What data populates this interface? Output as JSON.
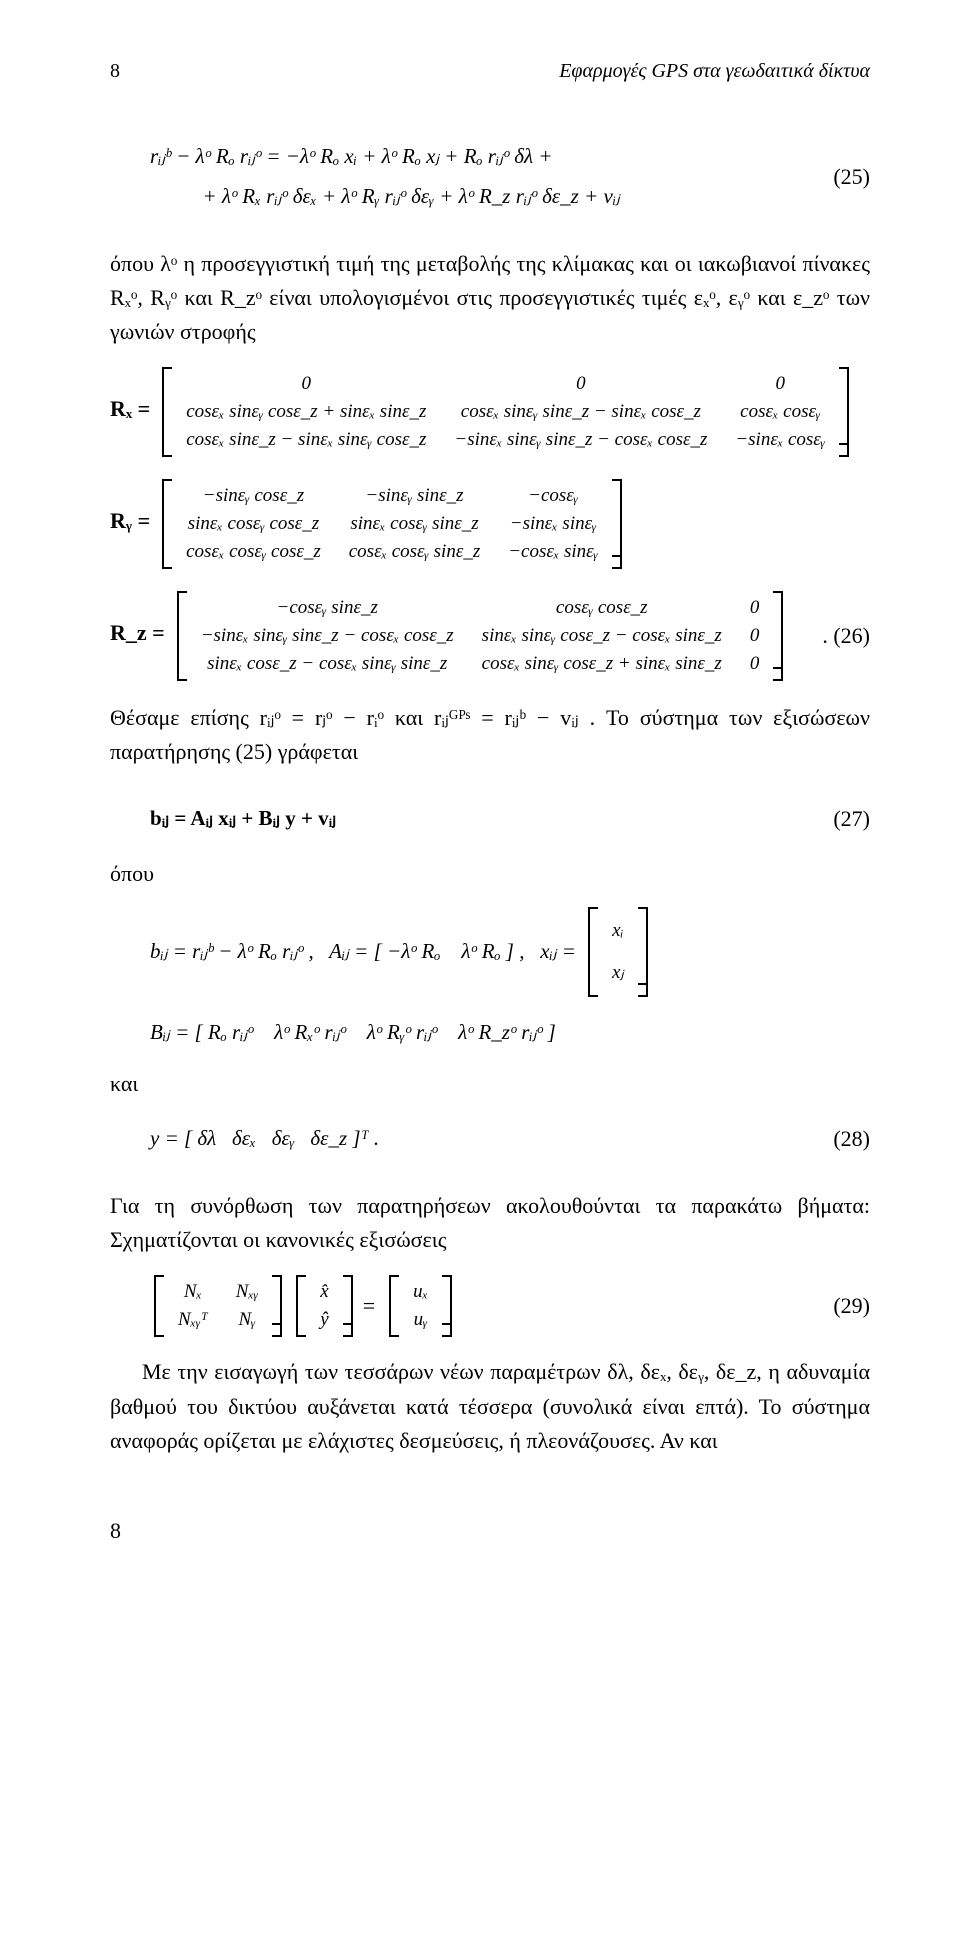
{
  "header": {
    "page_left": "8",
    "title_right": "Εφαρμογές GPS στα γεωδαιτικά δίκτυα"
  },
  "eq25": {
    "line1": "rᵢⱼᵇ − λᵒ Rₒ rᵢⱼᵒ = −λᵒ Rₒ xᵢ + λᵒ Rₒ xⱼ + Rₒ rᵢⱼᵒ δλ +",
    "line2": "          + λᵒ Rₓ rᵢⱼᵒ δεₓ + λᵒ Rᵧ rᵢⱼᵒ δεᵧ + λᵒ R_z rᵢⱼᵒ δε_z + vᵢⱼ",
    "num": "(25)"
  },
  "para1": "όπου λᵒ η προσεγγιστική τιμή της μεταβολής της κλίμακας και οι ιακωβιανοί πίνακες Rₓᵒ, Rᵧᵒ και R_zᵒ είναι υπολογισμένοι στις προσεγγιστικές τιμές εₓᵒ, εᵧᵒ και ε_zᵒ των γωνιών στροφής",
  "Rx": {
    "lead": "Rₓ =",
    "rows": [
      [
        "0",
        "0",
        "0"
      ],
      [
        "cosεₓ sinεᵧ cosε_z + sinεₓ sinε_z",
        "cosεₓ sinεᵧ sinε_z − sinεₓ cosε_z",
        "cosεₓ cosεᵧ"
      ],
      [
        "cosεₓ sinε_z − sinεₓ sinεᵧ cosε_z",
        "−sinεₓ sinεᵧ sinε_z − cosεₓ cosε_z",
        "−sinεₓ cosεᵧ"
      ]
    ]
  },
  "Ry": {
    "lead": "Rᵧ =",
    "rows": [
      [
        "−sinεᵧ cosε_z",
        "−sinεᵧ sinε_z",
        "−cosεᵧ"
      ],
      [
        "sinεₓ cosεᵧ cosε_z",
        "sinεₓ cosεᵧ sinε_z",
        "−sinεₓ sinεᵧ"
      ],
      [
        "cosεₓ cosεᵧ cosε_z",
        "cosεₓ cosεᵧ sinε_z",
        "−cosεₓ sinεᵧ"
      ]
    ]
  },
  "Rz": {
    "lead": "R_z =",
    "rows": [
      [
        "−cosεᵧ sinε_z",
        "cosεᵧ cosε_z",
        "0"
      ],
      [
        "−sinεₓ sinεᵧ sinε_z − cosεₓ cosε_z",
        "sinεₓ sinεᵧ cosε_z − cosεₓ sinε_z",
        "0"
      ],
      [
        "sinεₓ cosε_z − cosεₓ sinεᵧ sinε_z",
        "cosεₓ sinεᵧ cosε_z + sinεₓ sinε_z",
        "0"
      ]
    ],
    "num": ".   (26)"
  },
  "para2": "Θέσαμε επίσης rᵢⱼᵒ = rⱼᵒ − rᵢᵒ και rᵢⱼᴳᴾˢ = rᵢⱼᵇ − vᵢⱼ . Το σύστημα των εξισώσεων παρατήρησης (25) γράφεται",
  "eq27": {
    "text": "bᵢⱼ = Aᵢⱼ xᵢⱼ + Bᵢⱼ y + vᵢⱼ",
    "num": "(27)"
  },
  "where": "όπου",
  "bij_line": "bᵢⱼ = rᵢⱼᵇ − λᵒ Rₒ rᵢⱼᵒ ,   Aᵢⱼ = [ −λᵒ Rₒ    λᵒ Rₒ ] ,   xᵢⱼ =",
  "xij_col": [
    "xᵢ",
    "xⱼ"
  ],
  "Bij_line": "Bᵢⱼ = [ Rₒ rᵢⱼᵒ    λᵒ Rₓᵒ rᵢⱼᵒ    λᵒ Rᵧᵒ rᵢⱼᵒ    λᵒ R_zᵒ rᵢⱼᵒ ]",
  "and": "και",
  "eq28": {
    "text": "y = [ δλ   δεₓ   δεᵧ   δε_z ]ᵀ .",
    "num": "(28)"
  },
  "para3": "Για τη συνόρθωση των παρατηρήσεων ακολουθούνται τα παρακάτω βήματα: Σχηματίζονται οι κανονικές εξισώσεις",
  "eq29": {
    "m1": [
      [
        "Nₓ",
        "Nₓᵧ"
      ],
      [
        "Nₓᵧᵀ",
        "Nᵧ"
      ]
    ],
    "m2": [
      [
        "x̂"
      ],
      [
        "ŷ"
      ]
    ],
    "m3": [
      [
        "uₓ"
      ],
      [
        "uᵧ"
      ]
    ],
    "eq": "=",
    "num": "(29)"
  },
  "para4": "Με την εισαγωγή των τεσσάρων νέων παραμέτρων δλ, δεₓ, δεᵧ, δε_z, η αδυναμία βαθμού του δικτύου αυξάνεται κατά τέσσερα (συνολικά είναι επτά). Το σύστημα αναφοράς ορίζεται με ελάχιστες δεσμεύσεις, ή πλεονάζουσες. Αν και",
  "footer": "8"
}
